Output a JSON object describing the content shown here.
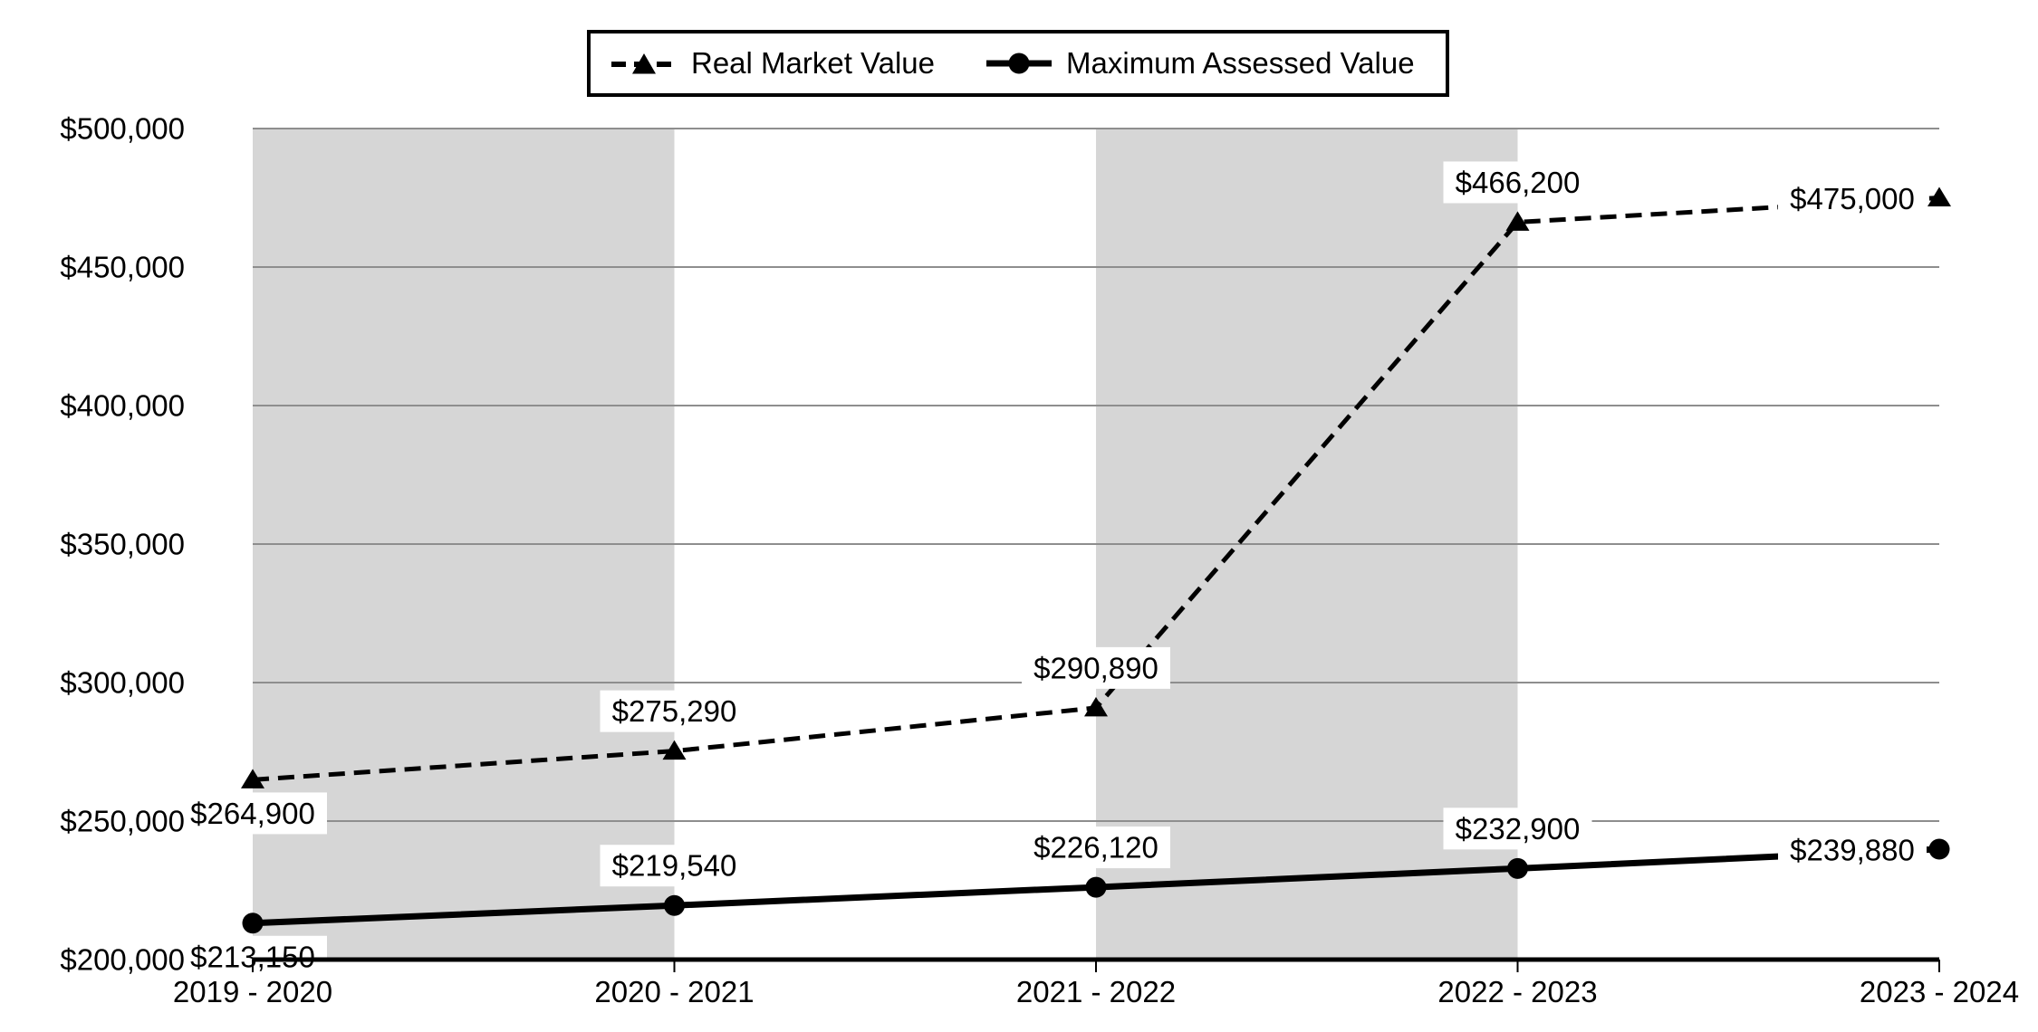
{
  "legend": {
    "entries": [
      {
        "label": "Real Market Value",
        "marker": "triangle",
        "line_style": "dashed"
      },
      {
        "label": "Maximum Assessed Value",
        "marker": "circle",
        "line_style": "solid"
      }
    ]
  },
  "chart_data": {
    "type": "line",
    "title": "",
    "categories": [
      "2019 - 2020",
      "2020 - 2021",
      "2021 - 2022",
      "2022 - 2023",
      "2023 - 2024"
    ],
    "series": [
      {
        "name": "Real Market Value",
        "line_style": "dashed",
        "marker": "triangle",
        "color": "#000000",
        "values": [
          264900,
          275290,
          290890,
          466200,
          475000
        ],
        "data_labels": [
          "$264,900",
          "$275,290",
          "$290,890",
          "$466,200",
          "$475,000"
        ],
        "label_positions": [
          "below",
          "above",
          "above",
          "above",
          "left"
        ]
      },
      {
        "name": "Maximum Assessed Value",
        "line_style": "solid",
        "marker": "circle",
        "color": "#000000",
        "values": [
          213150,
          219540,
          226120,
          232900,
          239880
        ],
        "data_labels": [
          "$213,150",
          "$219,540",
          "$226,120",
          "$232,900",
          "$239,880"
        ],
        "label_positions": [
          "below",
          "above",
          "above",
          "above",
          "left"
        ]
      }
    ],
    "y_axis": {
      "min": 200000,
      "max": 500000,
      "step": 50000,
      "tick_labels": [
        "$200,000",
        "$250,000",
        "$300,000",
        "$350,000",
        "$400,000",
        "$450,000",
        "$500,000"
      ]
    },
    "x_axis": {
      "tick_labels": [
        "2019 - 2020",
        "2020 - 2021",
        "2021 - 2022",
        "2022 - 2023",
        "2023 - 2024"
      ]
    },
    "grid": true,
    "legend_position": "top-center",
    "shaded_category_intervals": [
      [
        0,
        1
      ],
      [
        2,
        3
      ]
    ],
    "colors": {
      "band": "#d6d6d6",
      "gridline": "#8e8e8e",
      "axis": "#000000",
      "series": "#000000",
      "label_background": "#ffffff",
      "text": "#000000",
      "background": "#ffffff"
    }
  }
}
